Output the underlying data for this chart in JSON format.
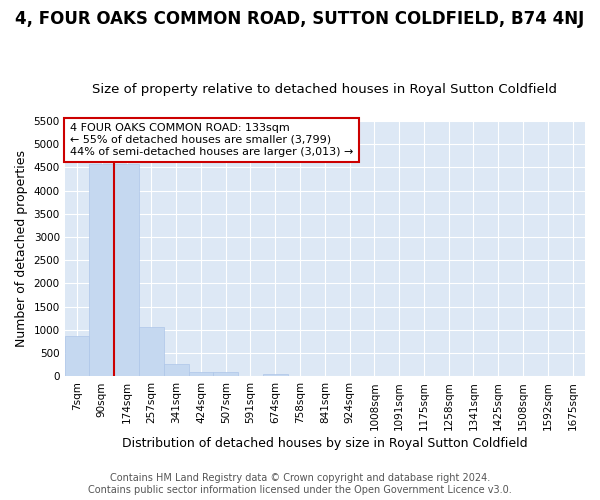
{
  "title": "4, FOUR OAKS COMMON ROAD, SUTTON COLDFIELD, B74 4NJ",
  "subtitle": "Size of property relative to detached houses in Royal Sutton Coldfield",
  "xlabel": "Distribution of detached houses by size in Royal Sutton Coldfield",
  "ylabel": "Number of detached properties",
  "categories": [
    "7sqm",
    "90sqm",
    "174sqm",
    "257sqm",
    "341sqm",
    "424sqm",
    "507sqm",
    "591sqm",
    "674sqm",
    "758sqm",
    "841sqm",
    "924sqm",
    "1008sqm",
    "1091sqm",
    "1175sqm",
    "1258sqm",
    "1341sqm",
    "1425sqm",
    "1508sqm",
    "1592sqm",
    "1675sqm"
  ],
  "values": [
    880,
    4560,
    4560,
    1060,
    275,
    85,
    85,
    0,
    50,
    0,
    0,
    0,
    0,
    0,
    0,
    0,
    0,
    0,
    0,
    0,
    0
  ],
  "bar_color": "#c5d8f0",
  "bar_edge_color": "#aec6e8",
  "vline_color": "#cc0000",
  "vline_position": 1.5,
  "ylim": [
    0,
    5500
  ],
  "yticks": [
    0,
    500,
    1000,
    1500,
    2000,
    2500,
    3000,
    3500,
    4000,
    4500,
    5000,
    5500
  ],
  "annotation_text": "4 FOUR OAKS COMMON ROAD: 133sqm\n← 55% of detached houses are smaller (3,799)\n44% of semi-detached houses are larger (3,013) →",
  "annotation_box_color": "#ffffff",
  "annotation_box_edgecolor": "#cc0000",
  "footer_line1": "Contains HM Land Registry data © Crown copyright and database right 2024.",
  "footer_line2": "Contains public sector information licensed under the Open Government Licence v3.0.",
  "fig_bg_color": "#ffffff",
  "plot_bg_color": "#dde8f5",
  "grid_color": "#ffffff",
  "title_fontsize": 12,
  "subtitle_fontsize": 9.5,
  "tick_fontsize": 7.5,
  "ylabel_fontsize": 9,
  "xlabel_fontsize": 9,
  "footer_fontsize": 7
}
